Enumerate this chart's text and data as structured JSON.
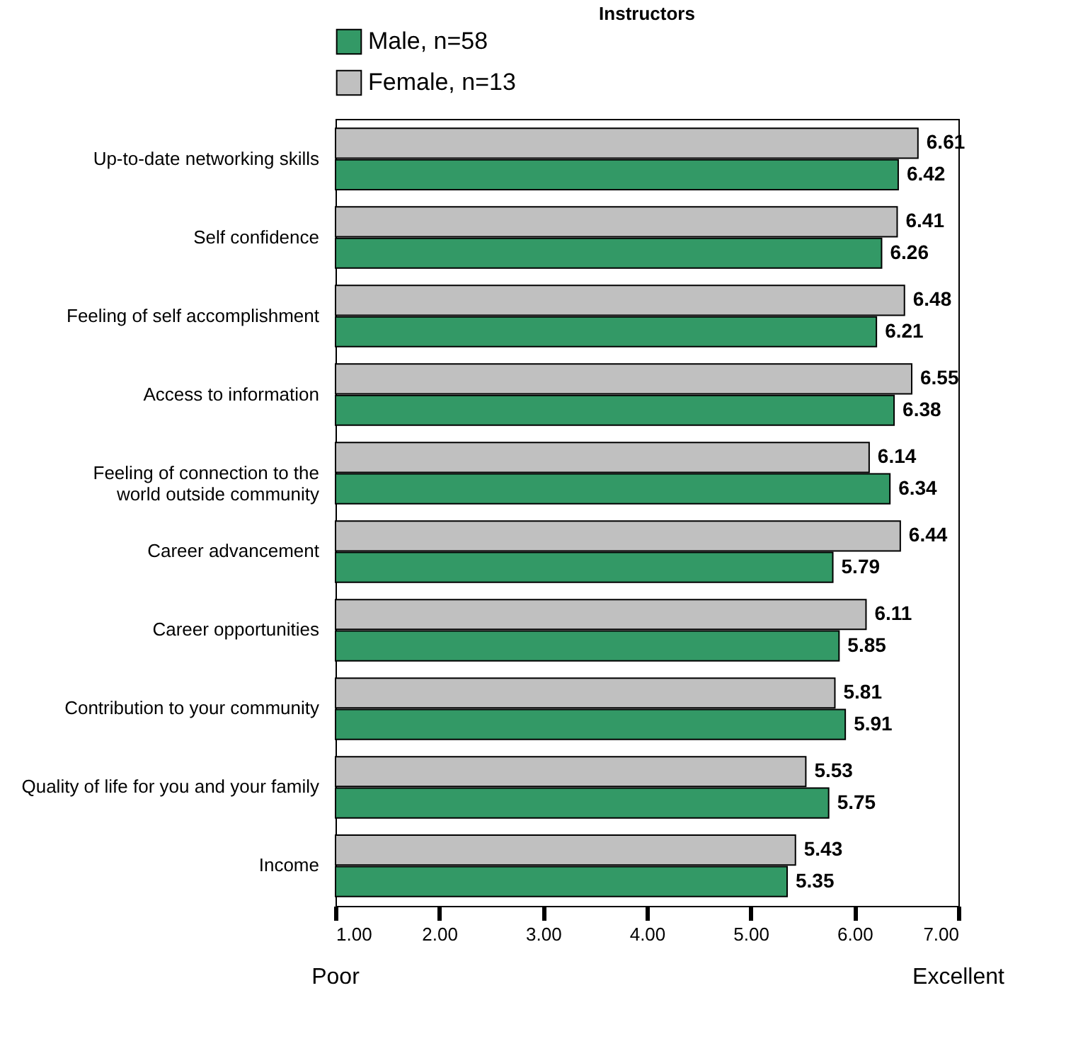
{
  "chart_data": {
    "type": "bar",
    "orientation": "horizontal",
    "title": "Instructors",
    "categories": [
      "Up-to-date networking skills",
      "Self confidence",
      "Feeling of self accomplishment",
      "Access to information",
      "Feeling of connection to the\nworld outside community",
      "Career advancement",
      "Career opportunities",
      "Contribution to your community",
      "Quality of life for you and your family",
      "Income"
    ],
    "series": [
      {
        "name": "Male, n=58",
        "color": "#339966",
        "values": [
          6.42,
          6.26,
          6.21,
          6.38,
          6.34,
          5.79,
          5.85,
          5.91,
          5.75,
          5.35
        ]
      },
      {
        "name": "Female, n=13",
        "color": "#c0c0c0",
        "values": [
          6.61,
          6.41,
          6.48,
          6.55,
          6.14,
          6.44,
          6.11,
          5.81,
          5.53,
          5.43
        ]
      }
    ],
    "xlim": [
      1,
      7
    ],
    "xticks": [
      {
        "value": 1,
        "label": "1.00"
      },
      {
        "value": 2,
        "label": "2.00"
      },
      {
        "value": 3,
        "label": "3.00"
      },
      {
        "value": 4,
        "label": "4.00"
      },
      {
        "value": 5,
        "label": "5.00"
      },
      {
        "value": 6,
        "label": "6.00"
      },
      {
        "value": 7,
        "label": "7.00"
      }
    ],
    "data_labels": true,
    "grid": false,
    "legend": "top",
    "annotations": [
      "Poor",
      "Excellent"
    ]
  }
}
